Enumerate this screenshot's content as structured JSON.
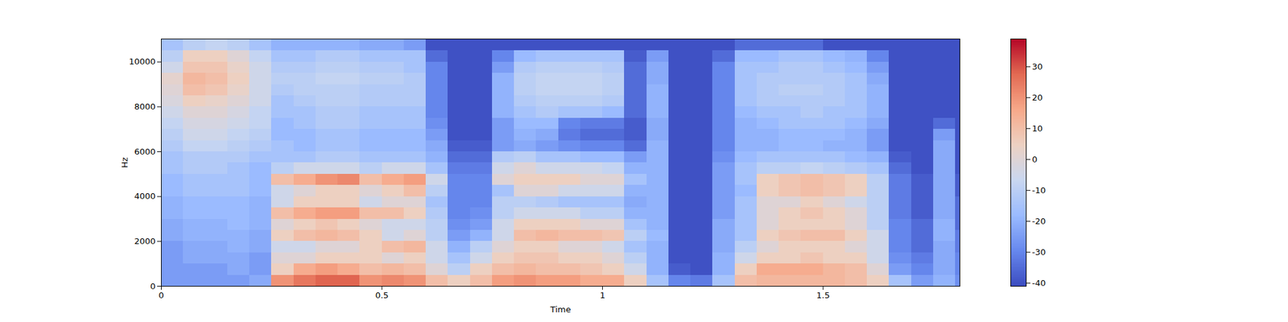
{
  "chart_data": {
    "type": "heatmap",
    "x_label": "Time",
    "y_label": "Hz",
    "xlim": [
      0,
      1.81
    ],
    "xticks": [
      0,
      0.5,
      1,
      1.5
    ],
    "ylim": [
      0,
      11025
    ],
    "yticks": [
      0,
      2000,
      4000,
      6000,
      8000,
      10000
    ],
    "x": [
      0,
      0.05,
      0.1,
      0.15,
      0.2,
      0.25,
      0.3,
      0.35,
      0.4,
      0.45,
      0.5,
      0.55,
      0.6,
      0.65,
      0.7,
      0.75,
      0.8,
      0.85,
      0.9,
      0.95,
      1.0,
      1.05,
      1.1,
      1.15,
      1.2,
      1.25,
      1.3,
      1.35,
      1.4,
      1.45,
      1.5,
      1.55,
      1.6,
      1.65,
      1.7,
      1.75,
      1.8,
      1.81
    ],
    "y": [
      0,
      500,
      1000,
      1500,
      2000,
      2500,
      3000,
      3500,
      4000,
      4500,
      5000,
      5500,
      6000,
      6500,
      7000,
      7500,
      8000,
      8500,
      9000,
      9500,
      10000,
      10500,
      11000,
      11025
    ],
    "values": [
      [
        -25,
        -25,
        -25,
        -25,
        -22,
        -22,
        -20,
        -20,
        -18,
        -18,
        -15,
        -15,
        -12,
        -10,
        -8,
        -5,
        -2,
        0,
        2,
        -5,
        -10,
        -15,
        -40
      ],
      [
        -25,
        -25,
        -22,
        -22,
        -20,
        -20,
        -18,
        -18,
        -15,
        -15,
        -12,
        -12,
        -8,
        -5,
        -3,
        0,
        5,
        10,
        12,
        8,
        5,
        -10,
        -40
      ],
      [
        -25,
        -25,
        -22,
        -22,
        -20,
        -20,
        -18,
        -18,
        -15,
        -15,
        -12,
        -12,
        -8,
        -5,
        -3,
        0,
        3,
        8,
        10,
        8,
        5,
        -8,
        -40
      ],
      [
        -25,
        -22,
        -22,
        -20,
        -20,
        -18,
        -18,
        -18,
        -15,
        -15,
        -15,
        -12,
        -10,
        -8,
        -5,
        -3,
        0,
        3,
        5,
        3,
        0,
        -10,
        -40
      ],
      [
        -22,
        -25,
        -25,
        -22,
        -22,
        -20,
        -20,
        -20,
        -18,
        -18,
        -18,
        -15,
        -12,
        -10,
        -8,
        -8,
        -5,
        -5,
        -5,
        -5,
        -8,
        -15,
        -40
      ],
      [
        20,
        5,
        0,
        -5,
        5,
        0,
        10,
        -5,
        -5,
        10,
        -10,
        -15,
        -15,
        -18,
        -18,
        -15,
        -15,
        -12,
        -10,
        -12,
        -15,
        -20,
        -40
      ],
      [
        25,
        15,
        0,
        -5,
        10,
        5,
        15,
        5,
        0,
        15,
        -5,
        -15,
        -18,
        -18,
        -15,
        -15,
        -12,
        -10,
        -10,
        -12,
        -15,
        -20,
        -40
      ],
      [
        28,
        18,
        5,
        0,
        12,
        8,
        18,
        5,
        5,
        20,
        -5,
        -12,
        -15,
        -15,
        -12,
        -12,
        -10,
        -10,
        -8,
        -10,
        -12,
        -20,
        -40
      ],
      [
        28,
        15,
        5,
        0,
        10,
        5,
        18,
        5,
        5,
        22,
        -5,
        -12,
        -15,
        -15,
        -12,
        -12,
        -10,
        -10,
        -8,
        -10,
        -12,
        -20,
        -40
      ],
      [
        20,
        10,
        5,
        5,
        5,
        0,
        10,
        -5,
        0,
        10,
        -10,
        -15,
        -18,
        -18,
        -15,
        -15,
        -12,
        -12,
        -10,
        -12,
        -15,
        -22,
        -40
      ],
      [
        22,
        12,
        0,
        10,
        -5,
        -5,
        10,
        0,
        5,
        15,
        -5,
        -15,
        -18,
        -18,
        -15,
        -15,
        -12,
        -12,
        -10,
        -12,
        -15,
        -22,
        -40
      ],
      [
        20,
        10,
        5,
        12,
        0,
        -5,
        5,
        0,
        10,
        18,
        -5,
        -15,
        -18,
        -18,
        -15,
        -15,
        -12,
        -12,
        -12,
        -15,
        -15,
        -25,
        -40
      ],
      [
        10,
        0,
        -5,
        -5,
        -10,
        -10,
        -12,
        -15,
        -10,
        -5,
        -15,
        -20,
        -22,
        -25,
        -28,
        -30,
        -30,
        -30,
        -30,
        -30,
        -35,
        -40,
        -40
      ],
      [
        5,
        -10,
        -15,
        -20,
        -25,
        -28,
        -30,
        -30,
        -30,
        -30,
        -32,
        -35,
        -38,
        -40,
        -40,
        -40,
        -40,
        -40,
        -40,
        -40,
        -40,
        -40,
        -40
      ],
      [
        10,
        5,
        -5,
        -10,
        -20,
        -25,
        -28,
        -30,
        -30,
        -30,
        -32,
        -35,
        -38,
        -40,
        -40,
        -40,
        -40,
        -40,
        -40,
        -40,
        -40,
        -40,
        -40
      ],
      [
        18,
        10,
        5,
        0,
        -5,
        -5,
        -10,
        -10,
        -15,
        0,
        -5,
        -12,
        -25,
        -25,
        -25,
        -20,
        -20,
        -20,
        -20,
        -25,
        -30,
        -40,
        -40
      ],
      [
        20,
        12,
        8,
        5,
        10,
        5,
        -5,
        -10,
        0,
        5,
        0,
        -10,
        -22,
        -20,
        -18,
        -15,
        -12,
        -10,
        -10,
        -12,
        -18,
        -40,
        -40
      ],
      [
        18,
        10,
        8,
        5,
        12,
        5,
        -5,
        -12,
        0,
        5,
        -5,
        -15,
        -25,
        -22,
        -18,
        -12,
        -10,
        -8,
        -8,
        -10,
        -15,
        -40,
        -40
      ],
      [
        18,
        10,
        5,
        0,
        10,
        5,
        -5,
        -15,
        -5,
        5,
        -5,
        -15,
        -28,
        -32,
        -30,
        -15,
        -10,
        -8,
        -8,
        -10,
        -15,
        -40,
        -40
      ],
      [
        15,
        8,
        5,
        0,
        10,
        0,
        -10,
        -15,
        -5,
        0,
        -5,
        -18,
        -30,
        -35,
        -32,
        -15,
        -10,
        -8,
        -8,
        -10,
        -15,
        -40,
        -40
      ],
      [
        15,
        5,
        0,
        -5,
        8,
        0,
        -10,
        -15,
        -5,
        0,
        -8,
        -18,
        -30,
        -35,
        -32,
        -18,
        -12,
        -10,
        -10,
        -12,
        -15,
        -40,
        -40
      ],
      [
        5,
        -5,
        -10,
        -15,
        -10,
        -15,
        -20,
        -22,
        -20,
        -15,
        -20,
        -25,
        -35,
        -38,
        -38,
        -35,
        -35,
        -35,
        -35,
        -35,
        -38,
        -40,
        -40
      ],
      [
        -15,
        -20,
        -20,
        -20,
        -18,
        -20,
        -20,
        -20,
        -20,
        -20,
        -20,
        -20,
        -20,
        -22,
        -22,
        -20,
        -20,
        -20,
        -22,
        -22,
        -25,
        -40,
        -40
      ],
      [
        -30,
        -38,
        -40,
        -40,
        -40,
        -40,
        -40,
        -40,
        -40,
        -40,
        -40,
        -40,
        -40,
        -40,
        -40,
        -40,
        -40,
        -40,
        -40,
        -40,
        -40,
        -40,
        -40
      ],
      [
        -32,
        -40,
        -40,
        -40,
        -40,
        -40,
        -40,
        -40,
        -40,
        -40,
        -40,
        -40,
        -40,
        -40,
        -40,
        -40,
        -40,
        -40,
        -40,
        -40,
        -40,
        -40,
        -40
      ],
      [
        -15,
        -20,
        -20,
        -22,
        -22,
        -22,
        -25,
        -25,
        -25,
        -25,
        -25,
        -28,
        -30,
        -30,
        -30,
        -30,
        -30,
        -30,
        -30,
        -30,
        -35,
        -40,
        -40
      ],
      [
        10,
        5,
        -5,
        -10,
        -15,
        -15,
        -15,
        -15,
        -18,
        -15,
        -15,
        -18,
        -20,
        -20,
        -20,
        -18,
        -15,
        -15,
        -15,
        -15,
        -18,
        -35,
        -40
      ],
      [
        12,
        15,
        5,
        0,
        5,
        0,
        0,
        0,
        5,
        5,
        -10,
        -15,
        -20,
        -20,
        -18,
        -15,
        -12,
        -12,
        -12,
        -15,
        -18,
        -35,
        -40
      ],
      [
        12,
        15,
        5,
        5,
        8,
        5,
        5,
        0,
        8,
        8,
        -10,
        -15,
        -18,
        -18,
        -15,
        -15,
        -12,
        -10,
        -12,
        -12,
        -15,
        -35,
        -40
      ],
      [
        12,
        15,
        8,
        5,
        10,
        5,
        8,
        5,
        10,
        10,
        -8,
        -15,
        -18,
        -18,
        -15,
        -12,
        -12,
        -10,
        -12,
        -12,
        -15,
        -35,
        -40
      ],
      [
        12,
        12,
        5,
        5,
        10,
        5,
        5,
        0,
        8,
        8,
        -10,
        -15,
        -20,
        -18,
        -15,
        -15,
        -12,
        -12,
        -12,
        -15,
        -18,
        -40,
        -40
      ],
      [
        10,
        10,
        5,
        0,
        5,
        0,
        0,
        -5,
        5,
        5,
        -12,
        -18,
        -20,
        -20,
        -18,
        -15,
        -15,
        -15,
        -15,
        -18,
        -20,
        -40,
        -40
      ],
      [
        5,
        0,
        -5,
        -5,
        -5,
        -10,
        -10,
        -10,
        -10,
        -10,
        -15,
        -20,
        -25,
        -25,
        -22,
        -20,
        -20,
        -20,
        -22,
        -25,
        -30,
        -40,
        -40
      ],
      [
        -15,
        -25,
        -28,
        -30,
        -30,
        -30,
        -32,
        -32,
        -32,
        -32,
        -35,
        -38,
        -40,
        -40,
        -40,
        -40,
        -40,
        -40,
        -40,
        -40,
        -40,
        -40,
        -40
      ],
      [
        -25,
        -30,
        -32,
        -35,
        -35,
        -35,
        -38,
        -38,
        -38,
        -38,
        -40,
        -40,
        -40,
        -40,
        -40,
        -40,
        -40,
        -40,
        -40,
        -40,
        -40,
        -40,
        -40
      ],
      [
        -20,
        -22,
        -22,
        -22,
        -20,
        -20,
        -22,
        -22,
        -22,
        -22,
        -22,
        -22,
        -22,
        -25,
        -35,
        -40,
        -40,
        -40,
        -40,
        -40,
        -40,
        -40,
        -40
      ],
      [
        -28,
        -30,
        -30,
        -32,
        -32,
        -35,
        -35,
        -35,
        -38,
        -38,
        -40,
        -40,
        -40,
        -40,
        -40,
        -40,
        -40,
        -40,
        -40,
        -40,
        -40,
        -40,
        -40
      ]
    ],
    "colorbar": {
      "lim": [
        -41,
        39
      ],
      "ticks": [
        -40,
        -30,
        -20,
        -10,
        0,
        10,
        20,
        30
      ]
    }
  }
}
